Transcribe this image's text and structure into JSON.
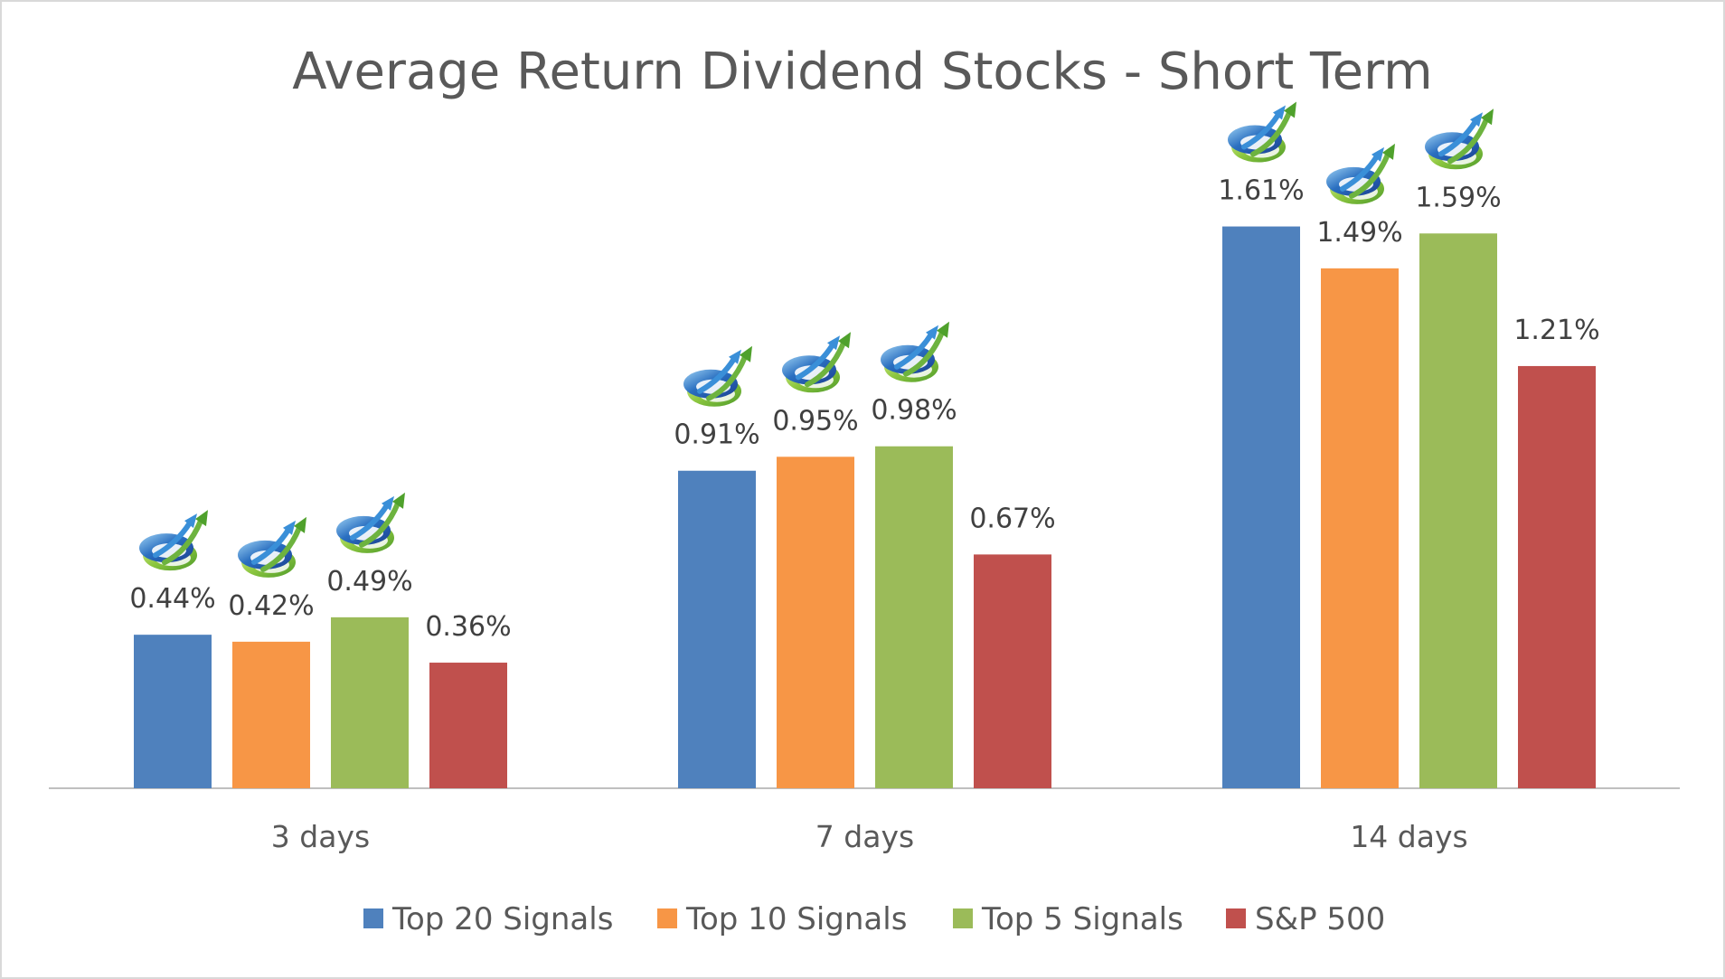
{
  "chart_data": {
    "type": "bar",
    "title": "Average Return Dividend Stocks - Short Term",
    "xlabel": "",
    "ylabel": "",
    "categories": [
      "3 days",
      "7 days",
      "14 days"
    ],
    "ylim": [
      0,
      1.8
    ],
    "grid": false,
    "legend_position": "bottom",
    "series": [
      {
        "name": "Top 20 Signals",
        "color": "#4F81BD",
        "values": [
          0.44,
          0.91,
          1.61
        ],
        "labels": [
          "0.44%",
          "0.91%",
          "1.61%"
        ],
        "icon": "growth-arrow-icon"
      },
      {
        "name": "Top 10 Signals",
        "color": "#F79646",
        "values": [
          0.42,
          0.95,
          1.49
        ],
        "labels": [
          "0.42%",
          "0.95%",
          "1.49%"
        ],
        "icon": "growth-arrow-icon"
      },
      {
        "name": "Top 5 Signals",
        "color": "#9BBB59",
        "values": [
          0.49,
          0.98,
          1.59
        ],
        "labels": [
          "0.49%",
          "0.98%",
          "1.59%"
        ],
        "icon": "growth-arrow-icon"
      },
      {
        "name": "S&P 500",
        "color": "#C0504D",
        "values": [
          0.36,
          0.67,
          1.21
        ],
        "labels": [
          "0.36%",
          "0.67%",
          "1.21%"
        ],
        "icon": ""
      }
    ]
  }
}
